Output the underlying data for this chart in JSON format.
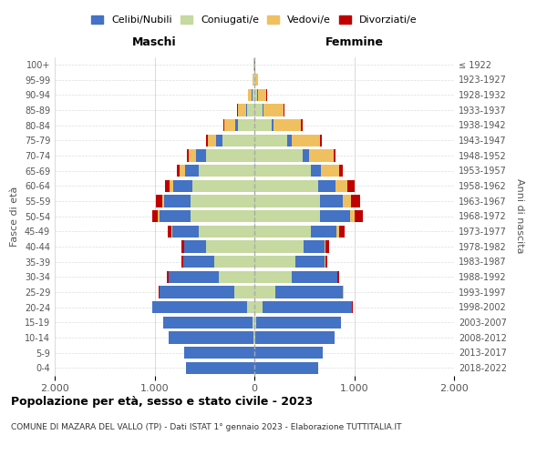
{
  "age_groups_bottom_to_top": [
    "0-4",
    "5-9",
    "10-14",
    "15-19",
    "20-24",
    "25-29",
    "30-34",
    "35-39",
    "40-44",
    "45-49",
    "50-54",
    "55-59",
    "60-64",
    "65-69",
    "70-74",
    "75-79",
    "80-84",
    "85-89",
    "90-94",
    "95-99",
    "100+"
  ],
  "birth_years_bottom_to_top": [
    "2018-2022",
    "2013-2017",
    "2008-2012",
    "2003-2007",
    "1998-2002",
    "1993-1997",
    "1988-1992",
    "1983-1987",
    "1978-1982",
    "1973-1977",
    "1968-1972",
    "1963-1967",
    "1958-1962",
    "1953-1957",
    "1948-1952",
    "1943-1947",
    "1938-1942",
    "1933-1937",
    "1928-1932",
    "1923-1927",
    "≤ 1922"
  ],
  "colors": {
    "celibe": "#4472C4",
    "coniugato": "#c5d9a0",
    "vedovo": "#f0c060",
    "divorziato": "#c00000"
  },
  "male": {
    "celibe": [
      680,
      700,
      850,
      900,
      950,
      750,
      500,
      310,
      220,
      260,
      310,
      260,
      190,
      130,
      100,
      60,
      30,
      15,
      8,
      4,
      2
    ],
    "coniugato": [
      2,
      2,
      5,
      15,
      70,
      200,
      360,
      400,
      480,
      560,
      640,
      640,
      620,
      560,
      480,
      320,
      160,
      70,
      20,
      5,
      2
    ],
    "vedovo": [
      0,
      0,
      0,
      1,
      1,
      1,
      2,
      3,
      5,
      8,
      15,
      25,
      35,
      55,
      80,
      90,
      110,
      80,
      35,
      10,
      2
    ],
    "divorziato": [
      0,
      0,
      0,
      1,
      2,
      5,
      15,
      20,
      30,
      40,
      55,
      60,
      50,
      30,
      20,
      15,
      10,
      5,
      2,
      0,
      0
    ]
  },
  "female": {
    "nubile": [
      640,
      680,
      800,
      850,
      900,
      680,
      460,
      290,
      210,
      250,
      300,
      230,
      170,
      100,
      70,
      40,
      20,
      12,
      8,
      4,
      2
    ],
    "coniugata": [
      2,
      3,
      5,
      20,
      80,
      210,
      370,
      410,
      490,
      570,
      660,
      660,
      640,
      570,
      480,
      330,
      170,
      80,
      25,
      8,
      3
    ],
    "vedova": [
      0,
      0,
      0,
      1,
      1,
      2,
      5,
      8,
      15,
      25,
      45,
      75,
      120,
      180,
      240,
      290,
      280,
      200,
      90,
      25,
      5
    ],
    "divorziata": [
      0,
      0,
      0,
      1,
      2,
      6,
      15,
      22,
      35,
      55,
      85,
      90,
      70,
      40,
      25,
      18,
      12,
      5,
      2,
      0,
      0
    ]
  },
  "xlim": 2000,
  "title": "Popolazione per età, sesso e stato civile - 2023",
  "subtitle": "COMUNE DI MAZARA DEL VALLO (TP) - Dati ISTAT 1° gennaio 2023 - Elaborazione TUTTITALIA.IT",
  "xlabel_left": "Maschi",
  "xlabel_right": "Femmine",
  "ylabel_left": "Fasce di età",
  "ylabel_right": "Anni di nascita",
  "legend_labels": [
    "Celibi/Nubili",
    "Coniugati/e",
    "Vedovi/e",
    "Divorziati/e"
  ]
}
